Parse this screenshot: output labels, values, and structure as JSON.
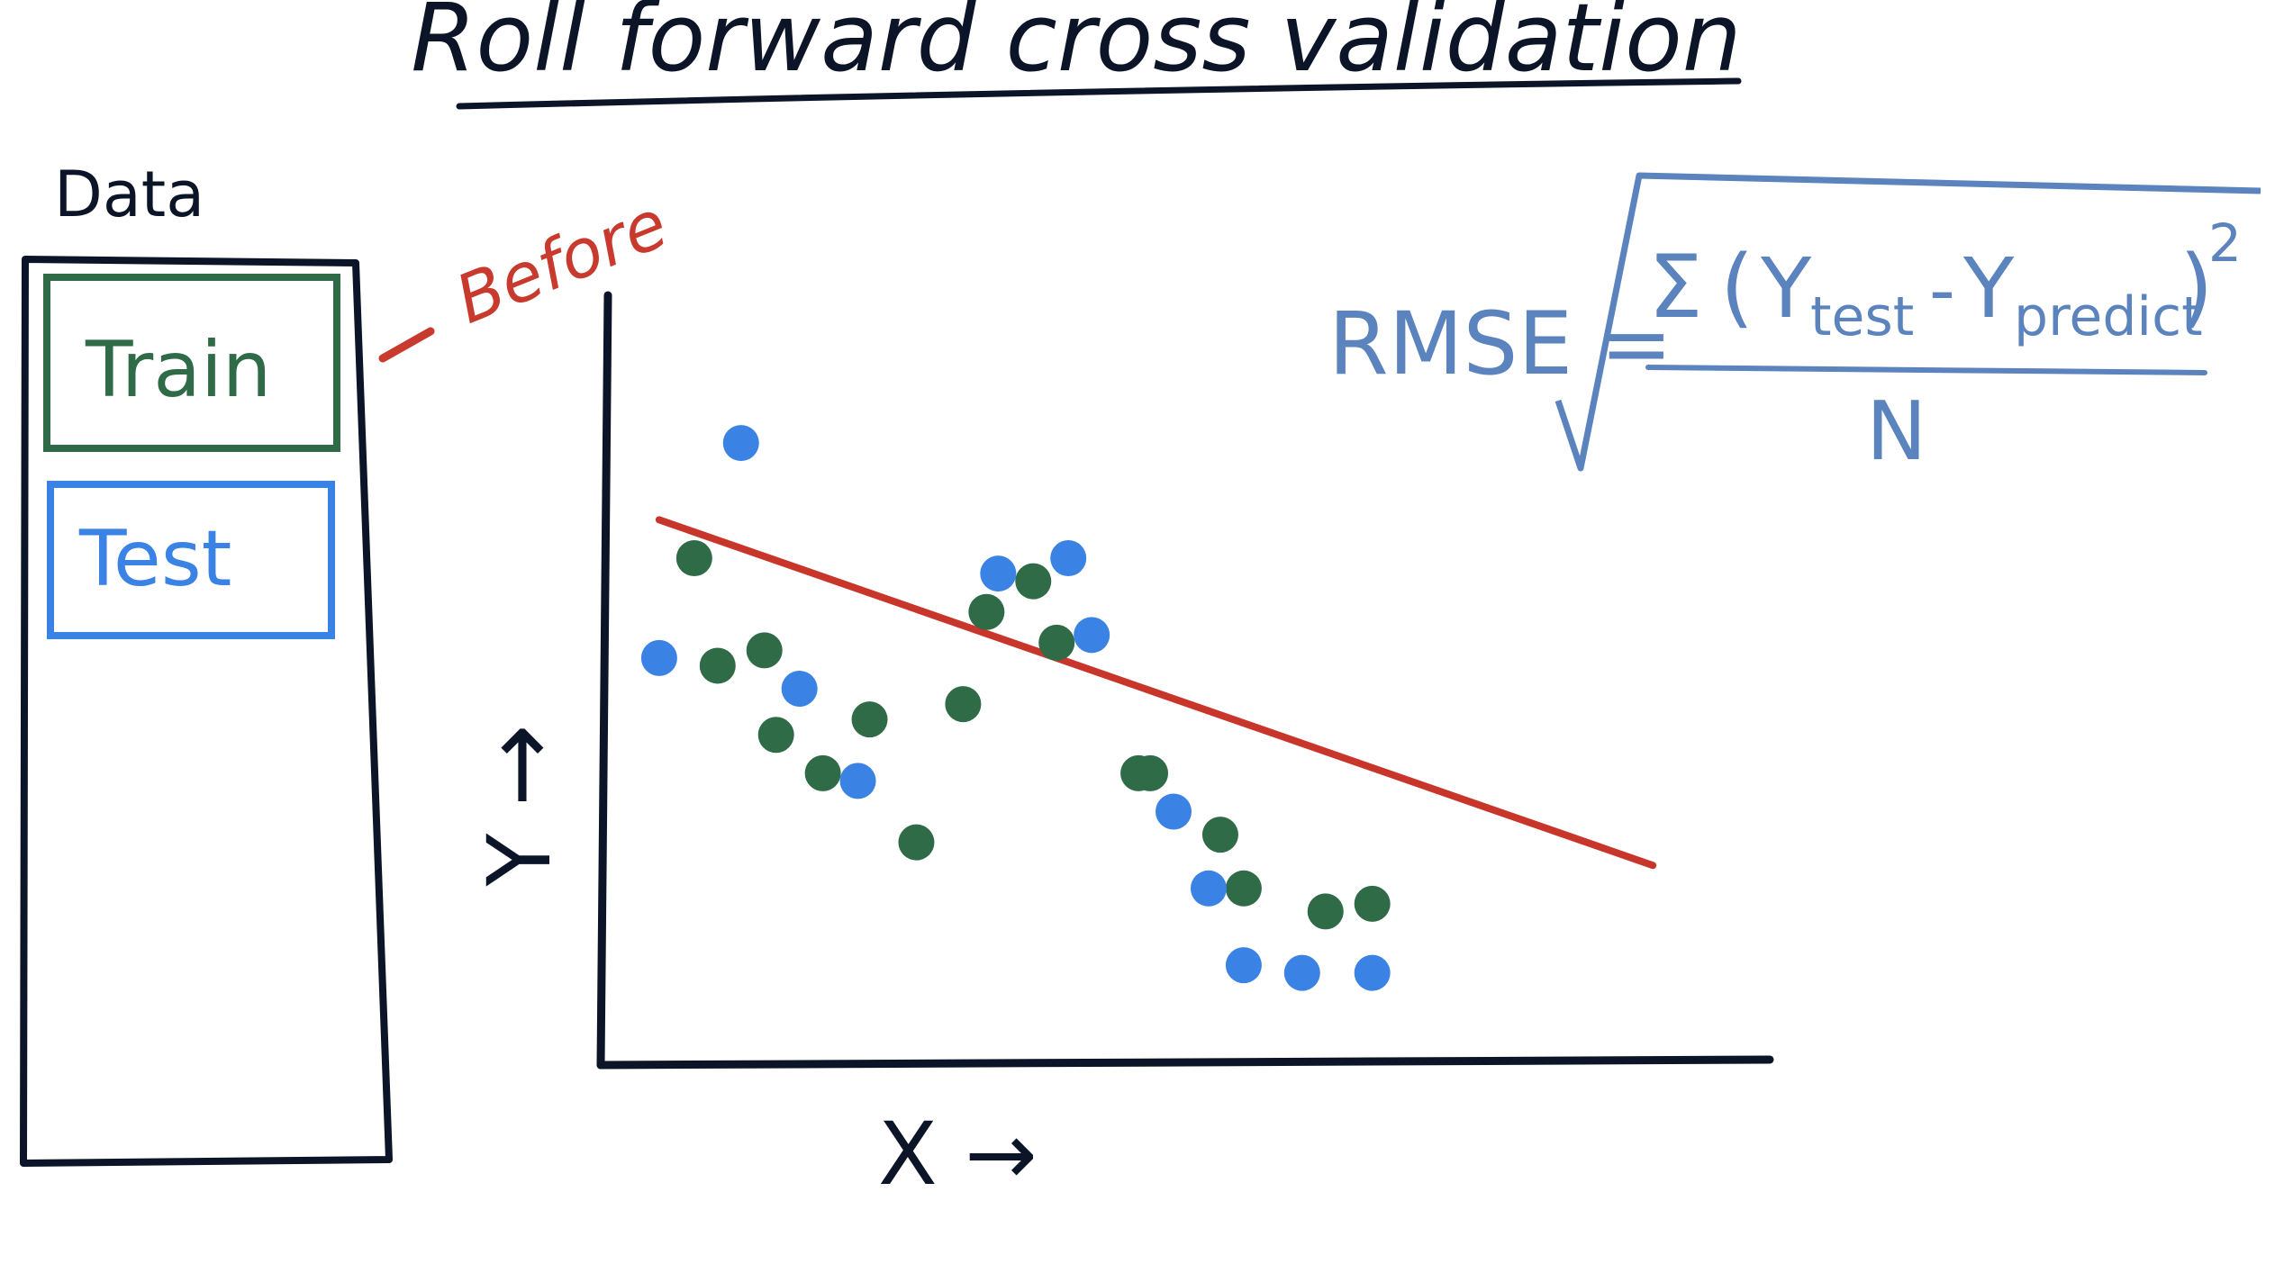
{
  "title": "Roll forward cross validation",
  "panel": {
    "heading": "Data",
    "train_label": "Train",
    "test_label": "Test",
    "annotation": "Before"
  },
  "formula": {
    "lhs": "RMSE =",
    "sigma": "Σ",
    "paren_open": "(",
    "y1": "Y",
    "y1_sub": "test",
    "minus": "-",
    "y2": "Y",
    "y2_sub": "predict",
    "paren_close": ")",
    "exponent": "2",
    "denominator": "N"
  },
  "axes": {
    "x_label": "X →",
    "y_label": "Y",
    "y_arrow": "↑"
  },
  "colors": {
    "ink": "#0c1428",
    "train": "#2f6b47",
    "test": "#3a82e4",
    "annotation": "#c83a2e",
    "formula": "#5b83bd",
    "fit_line": "#c8352b"
  },
  "chart_data": {
    "type": "scatter",
    "title": "",
    "xlabel": "X",
    "ylabel": "Y",
    "xlim": [
      0,
      100
    ],
    "ylim": [
      0,
      100
    ],
    "grid": false,
    "series": [
      {
        "name": "Train",
        "color": "#2f6b47",
        "x": [
          8,
          10,
          14,
          15,
          19,
          23,
          27,
          31,
          33,
          37,
          39,
          46,
          47,
          53,
          55,
          62,
          66
        ],
        "y": [
          66,
          52,
          54,
          43,
          38,
          45,
          29,
          47,
          59,
          63,
          55,
          38,
          38,
          30,
          23,
          20,
          21
        ]
      },
      {
        "name": "Test",
        "color": "#3a82e4",
        "x": [
          5,
          12,
          17,
          22,
          34,
          40,
          42,
          49,
          52,
          55,
          60,
          66
        ],
        "y": [
          53,
          81,
          49,
          37,
          64,
          66,
          56,
          33,
          23,
          13,
          12,
          12
        ]
      }
    ],
    "fit_line": {
      "color": "#c8352b",
      "x": [
        5,
        90
      ],
      "y": [
        71,
        26
      ]
    }
  }
}
